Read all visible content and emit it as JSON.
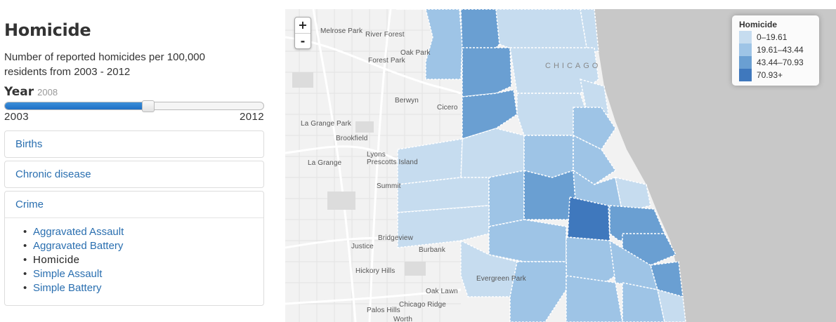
{
  "sidebar": {
    "title": "Homicide",
    "description": "Number of reported homicides per 100,000 residents from 2003 - 2012",
    "year_label": "Year",
    "year_value": "2008",
    "slider": {
      "min": "2003",
      "max": "2012",
      "min_value": 2003,
      "max_value": 2012,
      "value": 2008
    },
    "accordion": [
      {
        "label": "Births"
      },
      {
        "label": "Chronic disease"
      },
      {
        "label": "Crime",
        "items": [
          {
            "label": "Aggravated Assault",
            "active": false
          },
          {
            "label": "Aggravated Battery",
            "active": false
          },
          {
            "label": "Homicide",
            "active": true
          },
          {
            "label": "Simple Assault",
            "active": false
          },
          {
            "label": "Simple Battery",
            "active": false
          }
        ]
      }
    ]
  },
  "map": {
    "zoom_in": "+",
    "zoom_out": "-",
    "city_label": "CHICAGO",
    "legend": {
      "title": "Homicide",
      "classes": [
        {
          "label": "0–19.61",
          "color": "#c6dcef"
        },
        {
          "label": "19.61–43.44",
          "color": "#9ec4e6"
        },
        {
          "label": "43.44–70.93",
          "color": "#6a9fd2"
        },
        {
          "label": "70.93+",
          "color": "#3f78bd"
        }
      ]
    },
    "places": [
      "Melrose Park",
      "River Forest",
      "Oak Park",
      "Forest Park",
      "Berwyn",
      "Cicero",
      "La Grange Park",
      "Brookfield",
      "Lyons",
      "Prescotts Island",
      "La Grange",
      "Summit",
      "Bridgeview",
      "Justice",
      "Burbank",
      "Hickory Hills",
      "Evergreen Park",
      "Oak Lawn",
      "Chicago Ridge",
      "Palos Hills",
      "Worth"
    ],
    "colors": {
      "water": "#c8c8c8",
      "land": "#f2f2f2",
      "road": "#ffffff",
      "minor_road": "#e3e3e3"
    }
  }
}
